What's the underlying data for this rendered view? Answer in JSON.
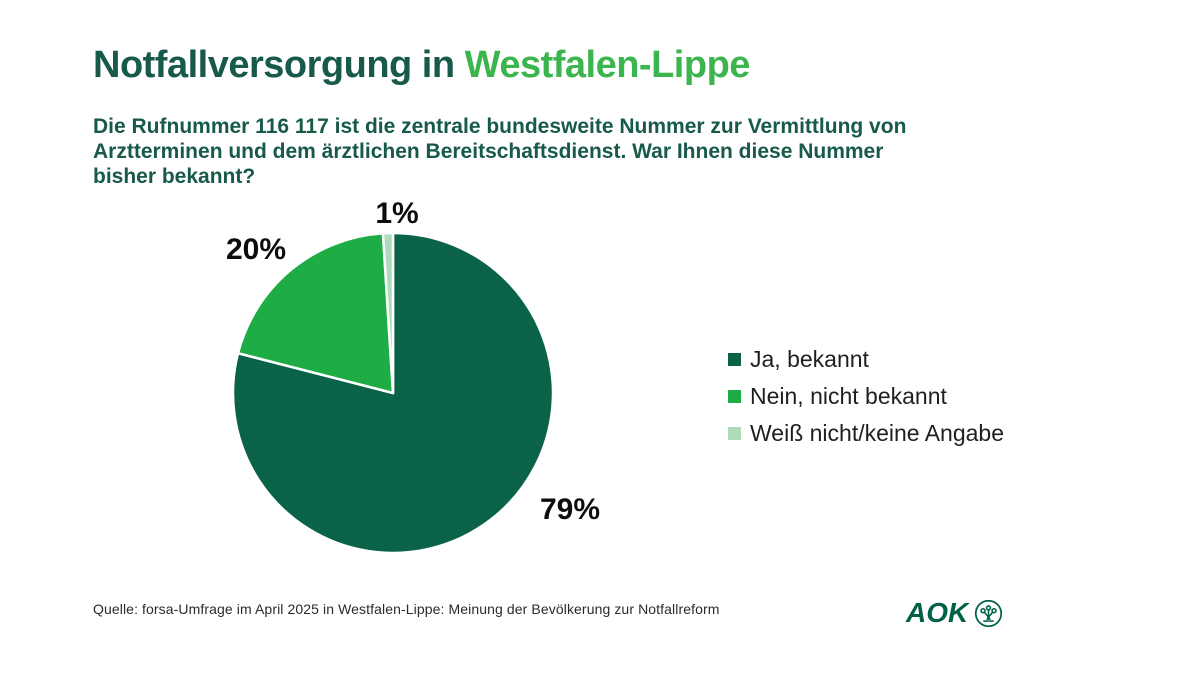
{
  "title": {
    "prefix": "Notfallversorgung in ",
    "highlight": "Westfalen-Lippe"
  },
  "subtitle_lines": [
    "Die Rufnummer 116 117 ist die zentrale bundesweite Nummer zur Vermittlung von",
    "Arztterminen und dem ärztlichen Bereitschaftsdienst. War Ihnen diese Nummer",
    "bisher bekannt?"
  ],
  "colors": {
    "title_dark": "#17594a",
    "title_highlight": "#3db54e",
    "subtitle": "#17594a",
    "pie_dark_green": "#0a6248",
    "pie_medium_green": "#1dad44",
    "pie_light_green": "#aedbb9",
    "label_text": "#0d0d0d",
    "legend_text": "#1f1f1f",
    "logo_green": "#006149",
    "slice_separator": "#ffffff"
  },
  "chart_data": {
    "type": "pie",
    "question": "Die Rufnummer 116 117 ist die zentrale bundesweite Nummer zur Vermittlung von Arztterminen und dem ärztlichen Bereitschaftsdienst. War Ihnen diese Nummer bisher bekannt?",
    "start_angle_deg": 0,
    "direction": "clockwise",
    "legend_position": "right",
    "slice_separator_color": "#ffffff",
    "slices": [
      {
        "label": "Ja, bekannt",
        "value": 79,
        "pct_label": "79%",
        "color": "#0a6248"
      },
      {
        "label": "Nein, nicht bekannt",
        "value": 20,
        "pct_label": "20%",
        "color": "#1dad44"
      },
      {
        "label": "Weiß nicht/keine Angabe",
        "value": 1,
        "pct_label": "1%",
        "color": "#aedbb9"
      }
    ]
  },
  "footer": {
    "source": "Quelle: forsa-Umfrage im April 2025 in Westfalen-Lippe: Meinung der Bevölkerung zur Notfallreform",
    "logo_text": "AOK"
  }
}
